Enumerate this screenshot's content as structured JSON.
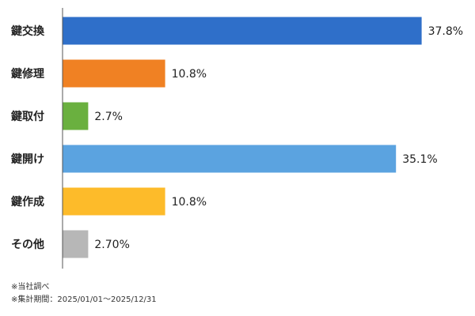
{
  "chart_data": {
    "type": "bar",
    "orientation": "horizontal",
    "categories": [
      "鍵交換",
      "鍵修理",
      "鍵取付",
      "鍵開け",
      "鍵作成",
      "その他"
    ],
    "values": [
      37.8,
      10.8,
      2.7,
      35.1,
      10.8,
      2.7
    ],
    "value_labels": [
      "37.8%",
      "10.8%",
      "2.7%",
      "35.1%",
      "10.8%",
      "2.70%"
    ],
    "colors": [
      "#2f6fc9",
      "#f08123",
      "#6ab03f",
      "#5ba3e0",
      "#fdbb2a",
      "#b7b7b7"
    ],
    "xlim": [
      0,
      40
    ],
    "grid": false,
    "legend": "none"
  },
  "notes": [
    "※当社調べ",
    "※集計期間：2025/01/01～2025/12/31"
  ]
}
